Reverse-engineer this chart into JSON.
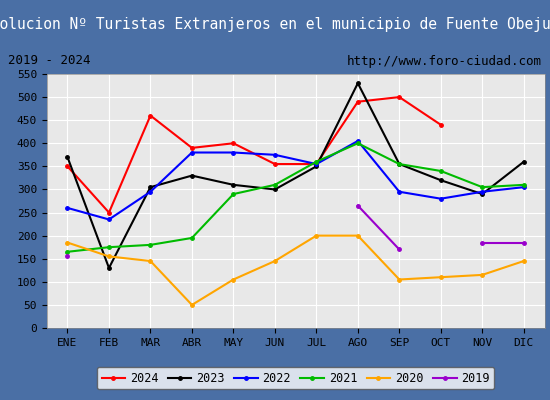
{
  "title": "Evolucion Nº Turistas Extranjeros en el municipio de Fuente Obejuna",
  "subtitle_left": "2019 - 2024",
  "subtitle_right": "http://www.foro-ciudad.com",
  "title_bg_color": "#4a6fa5",
  "title_text_color": "#ffffff",
  "subtitle_bg_color": "#ffffff",
  "subtitle_text_color": "#000000",
  "plot_bg_color": "#e8e8e8",
  "months": [
    "ENE",
    "FEB",
    "MAR",
    "ABR",
    "MAY",
    "JUN",
    "JUL",
    "AGO",
    "SEP",
    "OCT",
    "NOV",
    "DIC"
  ],
  "ylim": [
    0,
    550
  ],
  "yticks": [
    0,
    50,
    100,
    150,
    200,
    250,
    300,
    350,
    400,
    450,
    500,
    550
  ],
  "series": {
    "2024": {
      "color": "#ff0000",
      "data": [
        350,
        250,
        460,
        390,
        400,
        355,
        355,
        490,
        500,
        440,
        null,
        null
      ]
    },
    "2023": {
      "color": "#000000",
      "data": [
        370,
        130,
        305,
        330,
        310,
        300,
        350,
        530,
        355,
        320,
        290,
        360
      ]
    },
    "2022": {
      "color": "#0000ff",
      "data": [
        260,
        235,
        295,
        380,
        380,
        375,
        355,
        405,
        295,
        280,
        295,
        305
      ]
    },
    "2021": {
      "color": "#00bb00",
      "data": [
        165,
        175,
        180,
        195,
        290,
        310,
        360,
        400,
        355,
        340,
        305,
        310
      ]
    },
    "2020": {
      "color": "#ffa500",
      "data": [
        185,
        155,
        145,
        50,
        105,
        145,
        200,
        200,
        105,
        110,
        115,
        145
      ]
    },
    "2019": {
      "color": "#9900cc",
      "data": [
        155,
        null,
        null,
        null,
        null,
        null,
        null,
        265,
        170,
        null,
        185,
        185
      ]
    }
  },
  "legend_order": [
    "2024",
    "2023",
    "2022",
    "2021",
    "2020",
    "2019"
  ],
  "border_color": "#4a6fa5"
}
